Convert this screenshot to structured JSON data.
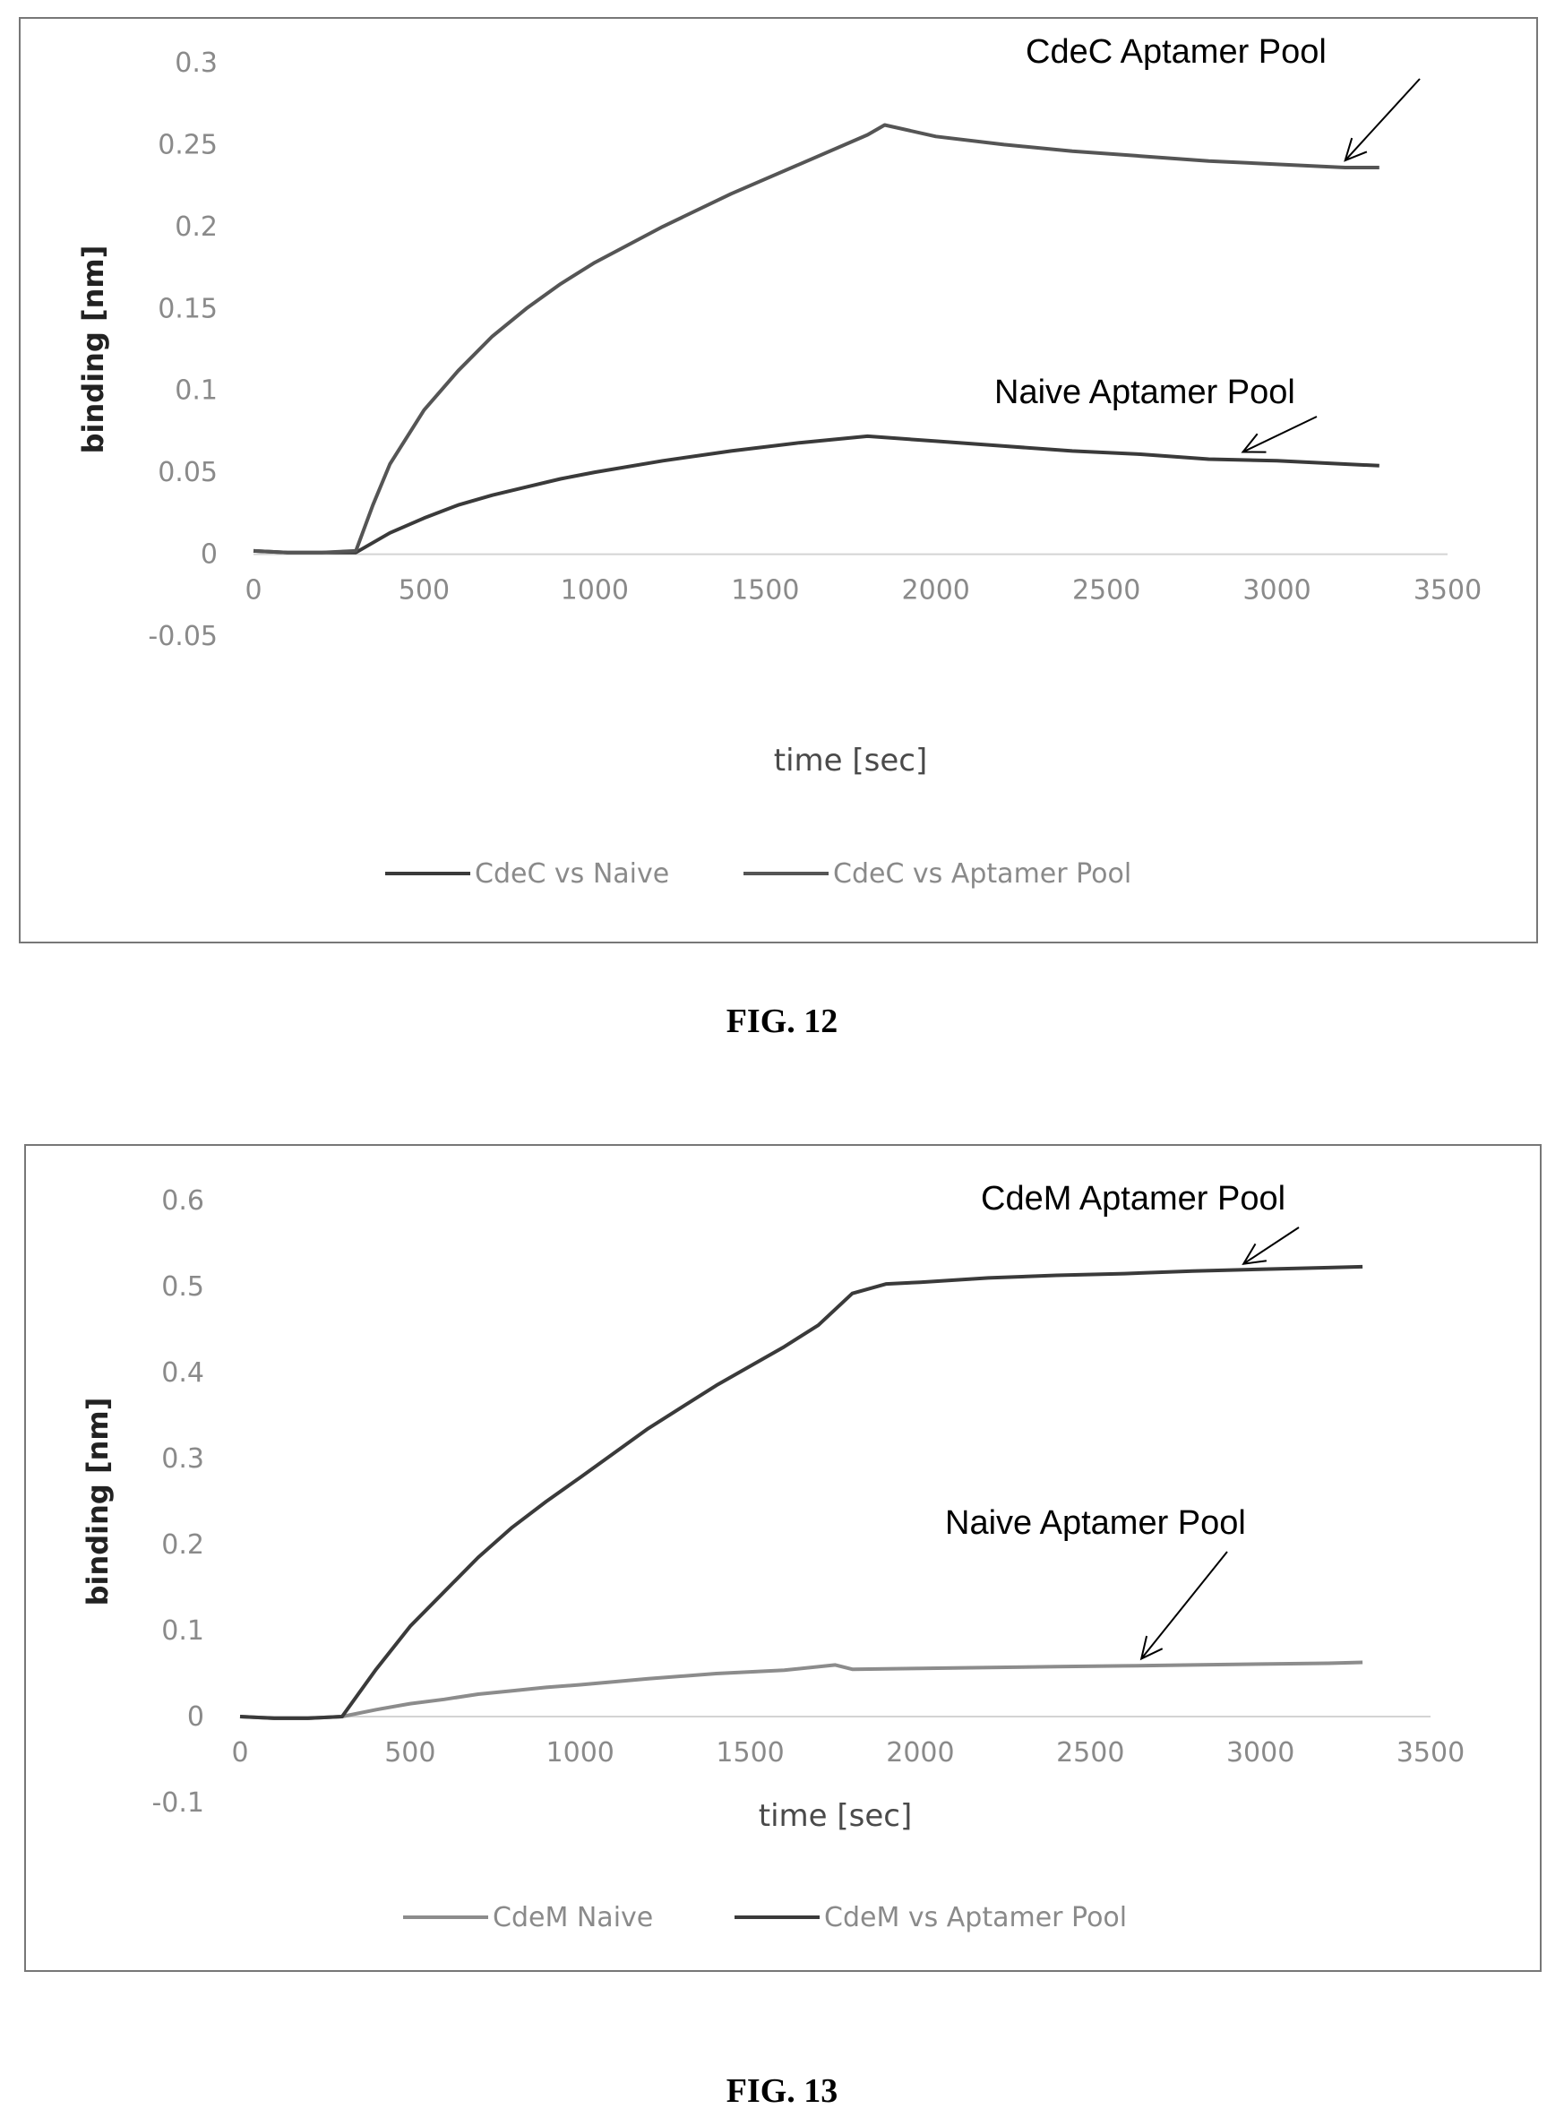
{
  "figures": [
    {
      "caption": "FIG. 12"
    },
    {
      "caption": "FIG. 13"
    }
  ],
  "chart_data": [
    {
      "type": "line",
      "title": "",
      "xlabel": "time [sec]",
      "ylabel": "binding [nm]",
      "xlim": [
        0,
        3500
      ],
      "ylim": [
        -0.05,
        0.3
      ],
      "xticks": [
        0,
        500,
        1000,
        1500,
        2000,
        2500,
        3000,
        3500
      ],
      "yticks": [
        -0.05,
        0,
        0.05,
        0.1,
        0.15,
        0.2,
        0.25,
        0.3
      ],
      "grid": false,
      "legend_position": "bottom",
      "series": [
        {
          "name": "CdeC vs Naive",
          "color": "#3a3a3a",
          "x": [
            0,
            100,
            200,
            300,
            400,
            500,
            600,
            700,
            800,
            900,
            1000,
            1200,
            1400,
            1600,
            1800,
            2000,
            2200,
            2400,
            2600,
            2800,
            3000,
            3200,
            3300
          ],
          "y": [
            0.002,
            0.001,
            0.001,
            0.001,
            0.013,
            0.022,
            0.03,
            0.036,
            0.041,
            0.046,
            0.05,
            0.057,
            0.063,
            0.068,
            0.072,
            0.069,
            0.066,
            0.063,
            0.061,
            0.058,
            0.057,
            0.055,
            0.054
          ]
        },
        {
          "name": "CdeC vs Aptamer Pool",
          "color": "#555555",
          "x": [
            0,
            100,
            200,
            300,
            350,
            400,
            500,
            600,
            700,
            800,
            900,
            1000,
            1200,
            1400,
            1600,
            1800,
            1850,
            2000,
            2200,
            2400,
            2600,
            2800,
            3000,
            3200,
            3300
          ],
          "y": [
            0.002,
            0.001,
            0.001,
            0.002,
            0.03,
            0.055,
            0.088,
            0.112,
            0.133,
            0.15,
            0.165,
            0.178,
            0.2,
            0.22,
            0.238,
            0.256,
            0.262,
            0.255,
            0.25,
            0.246,
            0.243,
            0.24,
            0.238,
            0.236,
            0.236
          ]
        }
      ],
      "annotations": [
        {
          "text": "CdeC Aptamer Pool",
          "x": 3200,
          "y": 0.236
        },
        {
          "text": "Naive Aptamer Pool",
          "x": 2900,
          "y": 0.058
        }
      ]
    },
    {
      "type": "line",
      "title": "",
      "xlabel": "time [sec]",
      "ylabel": "binding [nm]",
      "xlim": [
        0,
        3500
      ],
      "ylim": [
        -0.1,
        0.6
      ],
      "xticks": [
        0,
        500,
        1000,
        1500,
        2000,
        2500,
        3000,
        3500
      ],
      "yticks": [
        -0.1,
        0,
        0.1,
        0.2,
        0.3,
        0.4,
        0.5,
        0.6
      ],
      "grid": false,
      "legend_position": "bottom",
      "series": [
        {
          "name": "CdeM Naive",
          "color": "#8c8c8c",
          "x": [
            0,
            100,
            200,
            300,
            400,
            500,
            600,
            700,
            800,
            900,
            1000,
            1200,
            1400,
            1600,
            1750,
            1800,
            2000,
            2200,
            2400,
            2600,
            2800,
            3000,
            3200,
            3300
          ],
          "y": [
            0.0,
            -0.002,
            -0.002,
            0.0,
            0.008,
            0.015,
            0.02,
            0.026,
            0.03,
            0.034,
            0.037,
            0.044,
            0.05,
            0.054,
            0.06,
            0.055,
            0.056,
            0.057,
            0.058,
            0.059,
            0.06,
            0.061,
            0.062,
            0.063
          ]
        },
        {
          "name": "CdeM vs Aptamer Pool",
          "color": "#3a3a3a",
          "x": [
            0,
            100,
            200,
            300,
            400,
            500,
            600,
            700,
            800,
            900,
            1000,
            1200,
            1400,
            1600,
            1700,
            1800,
            1900,
            2000,
            2200,
            2400,
            2600,
            2800,
            3000,
            3200,
            3300
          ],
          "y": [
            0.0,
            -0.002,
            -0.002,
            0.0,
            0.055,
            0.105,
            0.145,
            0.185,
            0.22,
            0.25,
            0.278,
            0.335,
            0.385,
            0.43,
            0.455,
            0.492,
            0.503,
            0.505,
            0.51,
            0.513,
            0.515,
            0.518,
            0.52,
            0.522,
            0.523
          ]
        }
      ],
      "annotations": [
        {
          "text": "CdeM Aptamer Pool",
          "x": 2950,
          "y": 0.518
        },
        {
          "text": "Naive Aptamer Pool",
          "x": 2650,
          "y": 0.059
        }
      ]
    }
  ]
}
